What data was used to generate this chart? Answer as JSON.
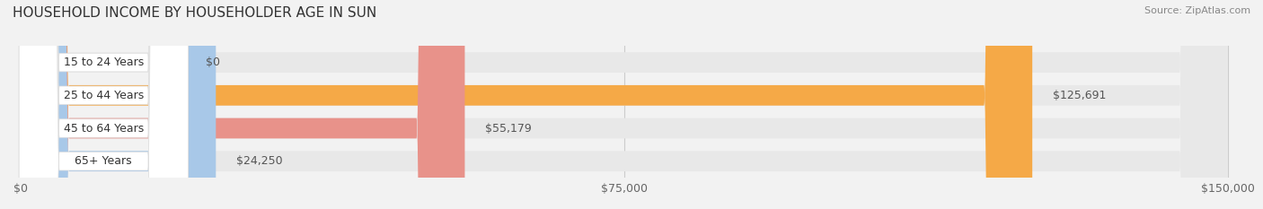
{
  "title": "HOUSEHOLD INCOME BY HOUSEHOLDER AGE IN SUN",
  "source": "Source: ZipAtlas.com",
  "categories": [
    "15 to 24 Years",
    "25 to 44 Years",
    "45 to 64 Years",
    "65+ Years"
  ],
  "values": [
    0,
    125691,
    55179,
    24250
  ],
  "bar_colors": [
    "#f4a0b0",
    "#f5a947",
    "#e8928a",
    "#a8c8e8"
  ],
  "value_labels": [
    "$0",
    "$125,691",
    "$55,179",
    "$24,250"
  ],
  "xlim": [
    0,
    150000
  ],
  "xticks": [
    0,
    75000,
    150000
  ],
  "xtick_labels": [
    "$0",
    "$75,000",
    "$150,000"
  ],
  "background_color": "#f2f2f2",
  "bar_bg_color": "#e8e8e8",
  "title_fontsize": 11,
  "label_fontsize": 9,
  "value_fontsize": 9,
  "source_fontsize": 8
}
